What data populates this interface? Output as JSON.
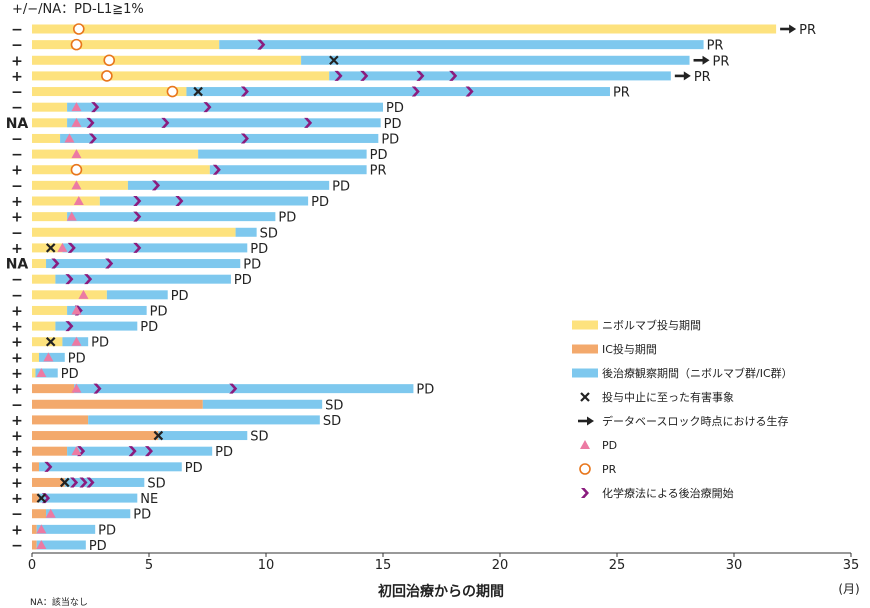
{
  "colors": {
    "nivolumab": "#FDE27E",
    "ic": "#F3A96C",
    "observation": "#7EC8EE",
    "pd": "#EC7AA3",
    "pr": "#E8761C",
    "chemo": "#8A1C7E",
    "ae_stop": "#222222",
    "arrow": "#222222",
    "axis": "#333333"
  },
  "chart_data": {
    "type": "bar",
    "orientation": "horizontal",
    "row_label_title": "+/−/NA：PD-L1≧1%",
    "xlabel": "初回治療からの期間",
    "xunit": "(月)",
    "xlim": [
      0,
      35
    ],
    "xticks": [
      "0",
      "5",
      "10",
      "15",
      "20",
      "25",
      "30",
      "35"
    ],
    "grid": false,
    "footnote": "NA：該当なし",
    "legend": {
      "placement": "right",
      "items": [
        {
          "label": "ニボルマブ投与期間",
          "icon": "nivolumab-swatch"
        },
        {
          "label": "IC投与期間",
          "icon": "ic-swatch"
        },
        {
          "label": "後治療観察期間（ニボルマブ群/IC群）",
          "icon": "observation-swatch"
        },
        {
          "label": "投与中止に至った有害事象",
          "icon": "x-mark-icon"
        },
        {
          "label": "データベースロック時点における生存",
          "icon": "arrow-right-icon"
        },
        {
          "label": "PD",
          "icon": "triangle-icon"
        },
        {
          "label": "PR",
          "icon": "circle-icon"
        },
        {
          "label": "化学療法による後治療開始",
          "icon": "chevron-icon"
        }
      ]
    },
    "rows": [
      {
        "pdl1": "−",
        "treatment": "nivolumab",
        "treatment_end": 31.8,
        "observation_end": null,
        "pr": [
          2.0
        ],
        "pd": [],
        "ae_stop": [],
        "chemo": [],
        "alive": true,
        "response": "PR"
      },
      {
        "pdl1": "−",
        "treatment": "nivolumab",
        "treatment_end": 8.0,
        "observation_end": 28.7,
        "pr": [
          1.9
        ],
        "pd": [],
        "ae_stop": [],
        "chemo": [
          9.8
        ],
        "alive": false,
        "response": "PR"
      },
      {
        "pdl1": "+",
        "treatment": "nivolumab",
        "treatment_end": 11.5,
        "observation_end": 28.1,
        "pr": [
          3.3
        ],
        "pd": [],
        "ae_stop": [
          12.9
        ],
        "chemo": [],
        "alive": true,
        "response": "PR"
      },
      {
        "pdl1": "+",
        "treatment": "nivolumab",
        "treatment_end": 12.7,
        "observation_end": 27.3,
        "pr": [
          3.2
        ],
        "pd": [],
        "ae_stop": [],
        "chemo": [
          13.1,
          14.2,
          16.6,
          18.0
        ],
        "alive": true,
        "response": "PR"
      },
      {
        "pdl1": "−",
        "treatment": "nivolumab",
        "treatment_end": 6.6,
        "observation_end": 24.7,
        "pr": [
          6.0
        ],
        "pd": [],
        "ae_stop": [
          7.1
        ],
        "chemo": [
          9.1,
          16.4,
          18.7
        ],
        "alive": false,
        "response": "PR"
      },
      {
        "pdl1": "−",
        "treatment": "nivolumab",
        "treatment_end": 1.5,
        "observation_end": 15.0,
        "pr": [],
        "pd": [
          1.9
        ],
        "ae_stop": [],
        "chemo": [
          2.7,
          7.5
        ],
        "alive": false,
        "response": "PD"
      },
      {
        "pdl1": "NA",
        "treatment": "nivolumab",
        "treatment_end": 1.5,
        "observation_end": 14.9,
        "pr": [],
        "pd": [
          1.9
        ],
        "ae_stop": [],
        "chemo": [
          2.5,
          5.7,
          11.8
        ],
        "alive": false,
        "response": "PD"
      },
      {
        "pdl1": "−",
        "treatment": "nivolumab",
        "treatment_end": 1.2,
        "observation_end": 14.8,
        "pr": [],
        "pd": [
          1.6
        ],
        "ae_stop": [],
        "chemo": [
          2.6,
          9.1
        ],
        "alive": false,
        "response": "PD"
      },
      {
        "pdl1": "−",
        "treatment": "nivolumab",
        "treatment_end": 7.1,
        "observation_end": 14.3,
        "pr": [],
        "pd": [
          1.9
        ],
        "ae_stop": [],
        "chemo": [],
        "alive": false,
        "response": "PD"
      },
      {
        "pdl1": "+",
        "treatment": "nivolumab",
        "treatment_end": 7.6,
        "observation_end": 14.3,
        "pr": [
          1.9
        ],
        "pd": [],
        "ae_stop": [],
        "chemo": [
          7.9
        ],
        "alive": false,
        "response": "PR"
      },
      {
        "pdl1": "−",
        "treatment": "nivolumab",
        "treatment_end": 4.1,
        "observation_end": 12.7,
        "pr": [],
        "pd": [
          1.9
        ],
        "ae_stop": [],
        "chemo": [
          5.3
        ],
        "alive": false,
        "response": "PD"
      },
      {
        "pdl1": "+",
        "treatment": "nivolumab",
        "treatment_end": 2.9,
        "observation_end": 11.8,
        "pr": [],
        "pd": [
          2.0
        ],
        "ae_stop": [],
        "chemo": [
          4.5,
          6.3
        ],
        "alive": false,
        "response": "PD"
      },
      {
        "pdl1": "+",
        "treatment": "nivolumab",
        "treatment_end": 1.5,
        "observation_end": 10.4,
        "pr": [],
        "pd": [
          1.7
        ],
        "ae_stop": [],
        "chemo": [
          4.5
        ],
        "alive": false,
        "response": "PD"
      },
      {
        "pdl1": "−",
        "treatment": "nivolumab",
        "treatment_end": 8.7,
        "observation_end": 9.6,
        "pr": [],
        "pd": [],
        "ae_stop": [],
        "chemo": [],
        "alive": false,
        "response": "SD"
      },
      {
        "pdl1": "+",
        "treatment": "nivolumab",
        "treatment_end": 1.3,
        "observation_end": 9.2,
        "pr": [],
        "pd": [
          1.3
        ],
        "ae_stop": [
          0.8
        ],
        "chemo": [
          1.7,
          4.5
        ],
        "alive": false,
        "response": "PD"
      },
      {
        "pdl1": "NA",
        "treatment": "nivolumab",
        "treatment_end": 0.6,
        "observation_end": 8.9,
        "pr": [],
        "pd": [],
        "ae_stop": [],
        "chemo": [
          1.0,
          3.3
        ],
        "alive": false,
        "response": "PD"
      },
      {
        "pdl1": "−",
        "treatment": "nivolumab",
        "treatment_end": 1.0,
        "observation_end": 8.5,
        "pr": [],
        "pd": [],
        "ae_stop": [],
        "chemo": [
          1.6,
          2.4
        ],
        "alive": false,
        "response": "PD"
      },
      {
        "pdl1": "−",
        "treatment": "nivolumab",
        "treatment_end": 3.2,
        "observation_end": 5.8,
        "pr": [],
        "pd": [
          2.2
        ],
        "ae_stop": [],
        "chemo": [],
        "alive": false,
        "response": "PD"
      },
      {
        "pdl1": "+",
        "treatment": "nivolumab",
        "treatment_end": 1.5,
        "observation_end": 4.9,
        "pr": [],
        "pd": [
          1.9
        ],
        "ae_stop": [],
        "chemo": [
          2.0
        ],
        "alive": false,
        "response": "PD"
      },
      {
        "pdl1": "+",
        "treatment": "nivolumab",
        "treatment_end": 1.0,
        "observation_end": 4.5,
        "pr": [],
        "pd": [],
        "ae_stop": [],
        "chemo": [
          1.6
        ],
        "alive": false,
        "response": "PD"
      },
      {
        "pdl1": "+",
        "treatment": "nivolumab",
        "treatment_end": 1.3,
        "observation_end": 2.4,
        "pr": [],
        "pd": [
          1.9
        ],
        "ae_stop": [
          0.8
        ],
        "chemo": [],
        "alive": false,
        "response": "PD"
      },
      {
        "pdl1": "+",
        "treatment": "nivolumab",
        "treatment_end": 0.3,
        "observation_end": 1.4,
        "pr": [],
        "pd": [
          0.7
        ],
        "ae_stop": [],
        "chemo": [],
        "alive": false,
        "response": "PD"
      },
      {
        "pdl1": "+",
        "treatment": "nivolumab",
        "treatment_end": 0.15,
        "observation_end": 1.1,
        "pr": [],
        "pd": [
          0.4
        ],
        "ae_stop": [],
        "chemo": [],
        "alive": false,
        "response": "PD"
      },
      {
        "pdl1": "+",
        "treatment": "ic",
        "treatment_end": 1.8,
        "observation_end": 16.3,
        "pr": [],
        "pd": [
          1.9
        ],
        "ae_stop": [],
        "chemo": [
          2.8,
          8.6
        ],
        "alive": false,
        "response": "PD"
      },
      {
        "pdl1": "−",
        "treatment": "ic",
        "treatment_end": 7.3,
        "observation_end": 12.4,
        "pr": [],
        "pd": [],
        "ae_stop": [],
        "chemo": [],
        "alive": false,
        "response": "SD"
      },
      {
        "pdl1": "+",
        "treatment": "ic",
        "treatment_end": 2.4,
        "observation_end": 12.3,
        "pr": [],
        "pd": [],
        "ae_stop": [],
        "chemo": [],
        "alive": false,
        "response": "SD"
      },
      {
        "pdl1": "+",
        "treatment": "ic",
        "treatment_end": 5.4,
        "observation_end": 9.2,
        "pr": [],
        "pd": [],
        "ae_stop": [
          5.4
        ],
        "chemo": [],
        "alive": false,
        "response": "SD"
      },
      {
        "pdl1": "+",
        "treatment": "ic",
        "treatment_end": 1.5,
        "observation_end": 7.7,
        "pr": [],
        "pd": [
          1.9
        ],
        "ae_stop": [],
        "chemo": [
          2.1,
          4.3,
          5.0
        ],
        "alive": false,
        "response": "PD"
      },
      {
        "pdl1": "+",
        "treatment": "ic",
        "treatment_end": 0.3,
        "observation_end": 6.4,
        "pr": [],
        "pd": [],
        "ae_stop": [],
        "chemo": [
          0.7
        ],
        "alive": false,
        "response": "PD"
      },
      {
        "pdl1": "+",
        "treatment": "ic",
        "treatment_end": 1.4,
        "observation_end": 4.8,
        "pr": [],
        "pd": [],
        "ae_stop": [
          1.4
        ],
        "chemo": [
          1.8,
          2.2,
          2.5
        ],
        "alive": false,
        "response": "SD"
      },
      {
        "pdl1": "+",
        "treatment": "ic",
        "treatment_end": 0.3,
        "observation_end": 4.5,
        "pr": [],
        "pd": [],
        "ae_stop": [
          0.4
        ],
        "chemo": [
          0.6
        ],
        "alive": false,
        "response": "NE"
      },
      {
        "pdl1": "−",
        "treatment": "ic",
        "treatment_end": 0.6,
        "observation_end": 4.2,
        "pr": [],
        "pd": [
          0.8
        ],
        "ae_stop": [],
        "chemo": [],
        "alive": false,
        "response": "PD"
      },
      {
        "pdl1": "+",
        "treatment": "ic",
        "treatment_end": 0.2,
        "observation_end": 2.7,
        "pr": [],
        "pd": [
          0.4
        ],
        "ae_stop": [],
        "chemo": [],
        "alive": false,
        "response": "PD"
      },
      {
        "pdl1": "−",
        "treatment": "ic",
        "treatment_end": 0.2,
        "observation_end": 2.3,
        "pr": [],
        "pd": [
          0.4
        ],
        "ae_stop": [],
        "chemo": [],
        "alive": false,
        "response": "PD"
      }
    ]
  }
}
